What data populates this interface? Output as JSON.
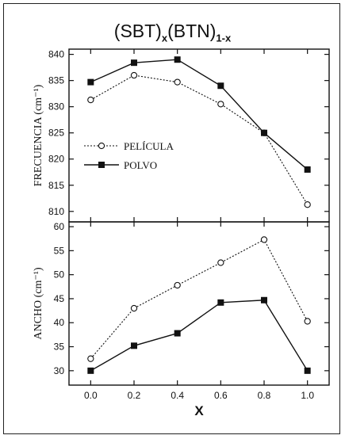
{
  "title_main": "(SBT)",
  "title_sub1": "x",
  "title_mid": "(BTN)",
  "title_sub2": "1-x",
  "chart_data": [
    {
      "type": "line",
      "ylabel": "FRECUENCIA (cm⁻¹)",
      "xlabel": "",
      "x": [
        0.0,
        0.2,
        0.4,
        0.6,
        0.8,
        1.0
      ],
      "xlim": [
        -0.1,
        1.1
      ],
      "ylim": [
        808,
        841
      ],
      "yticks": [
        810,
        815,
        820,
        825,
        830,
        835,
        840
      ],
      "legend_placement": "center-left",
      "series": [
        {
          "name": "PELÍCULA",
          "values": [
            831.3,
            836.0,
            834.7,
            830.5,
            825.0,
            811.3
          ],
          "style": "dotted",
          "marker": "open-circle"
        },
        {
          "name": "POLVO",
          "values": [
            834.7,
            838.4,
            839.0,
            834.0,
            825.0,
            818.0
          ],
          "style": "solid",
          "marker": "filled-square"
        }
      ]
    },
    {
      "type": "line",
      "ylabel": "ANCHO (cm⁻¹)",
      "xlabel": "X",
      "x": [
        0.0,
        0.2,
        0.4,
        0.6,
        0.8,
        1.0
      ],
      "xlim": [
        -0.1,
        1.1
      ],
      "ylim": [
        27,
        61
      ],
      "yticks": [
        30,
        35,
        40,
        45,
        50,
        55,
        60
      ],
      "xticks": [
        "0.0",
        "0.2",
        "0.4",
        "0.6",
        "0.8",
        "1.0"
      ],
      "series": [
        {
          "name": "PELÍCULA",
          "values": [
            32.5,
            43.0,
            47.8,
            52.5,
            57.3,
            40.3
          ],
          "style": "dotted",
          "marker": "open-circle"
        },
        {
          "name": "POLVO",
          "values": [
            30.0,
            35.2,
            37.8,
            44.2,
            44.7,
            30.0
          ],
          "style": "solid",
          "marker": "filled-square"
        }
      ]
    }
  ]
}
